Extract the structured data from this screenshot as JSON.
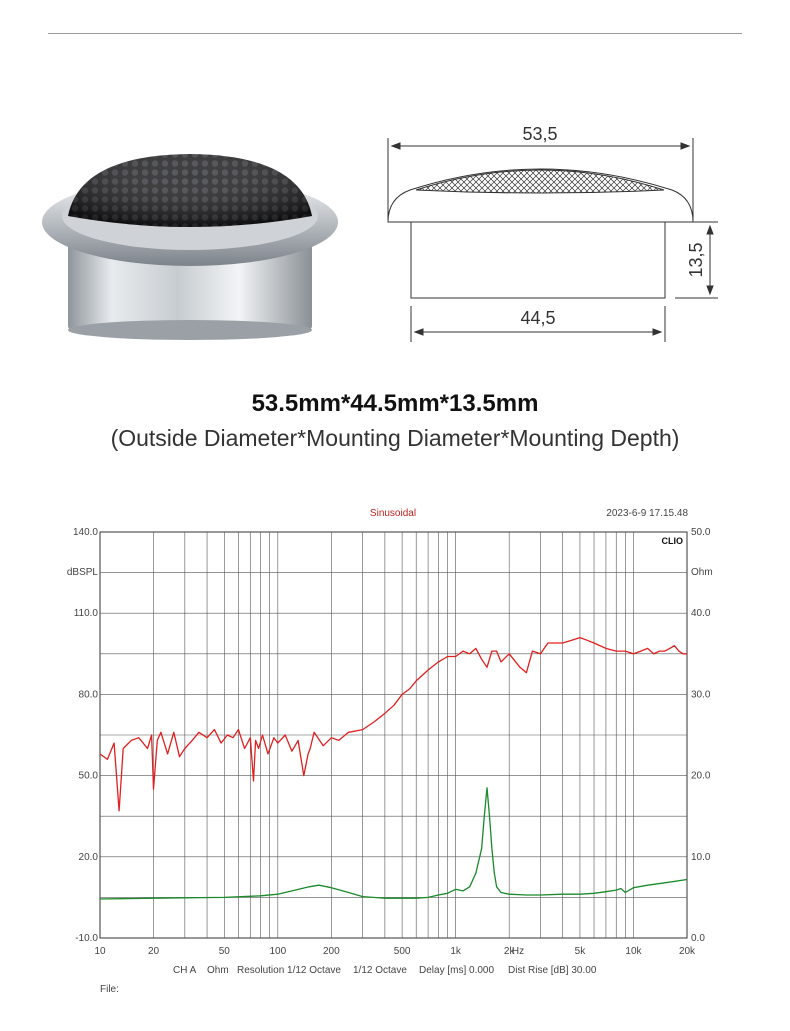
{
  "drawing": {
    "outside_diameter_label": "53,5",
    "mounting_depth_label": "13,5",
    "mounting_diameter_label": "44,5"
  },
  "dimensions": {
    "title": "53.5mm*44.5mm*13.5mm",
    "subtitle": "(Outside Diameter*Mounting Diameter*Mounting Depth)"
  },
  "chart_data": {
    "type": "line",
    "title": "Sinusoidal",
    "timestamp": "2023-6-9 17.15.48",
    "brand": "CLIO",
    "x_scale": "log",
    "xlim": [
      10,
      20000
    ],
    "x_ticks": [
      10,
      20,
      50,
      100,
      200,
      500,
      1000,
      2000,
      5000,
      10000,
      20000
    ],
    "x_tick_labels": [
      "10",
      "20",
      "50",
      "100",
      "200",
      "500",
      "1k",
      "2k",
      "5k",
      "10k",
      "20k"
    ],
    "x_unit": "Hz",
    "left_axis": {
      "unit": "dBSPL",
      "ylim": [
        -10,
        140
      ],
      "tick_labels": [
        "140.0",
        "110.0",
        "80.0",
        "50.0",
        "20.0",
        "-10.0"
      ]
    },
    "right_axis": {
      "unit": "Ohm",
      "ylim": [
        0,
        50
      ],
      "tick_labels": [
        "50.0",
        "40.0",
        "30.0",
        "20.0",
        "10.0",
        "0.0"
      ]
    },
    "grid": true,
    "series": [
      {
        "color": "#e0201f",
        "axis": "left",
        "x": [
          10,
          11,
          12,
          12.8,
          13.5,
          15,
          16.5,
          17.5,
          18.5,
          19.5,
          20,
          21,
          22,
          24,
          26,
          28,
          30,
          33,
          36,
          40,
          44,
          48,
          52,
          56,
          60,
          65,
          70,
          73,
          75,
          78,
          82,
          88,
          95,
          100,
          110,
          120,
          130,
          140,
          148,
          152,
          160,
          180,
          200,
          220,
          250,
          300,
          350,
          400,
          450,
          500,
          550,
          600,
          700,
          800,
          900,
          1000,
          1100,
          1200,
          1300,
          1400,
          1500,
          1600,
          1700,
          1800,
          2000,
          2300,
          2500,
          2700,
          3000,
          3300,
          3600,
          4000,
          4500,
          5000,
          5500,
          6000,
          7000,
          8000,
          9000,
          10000,
          11000,
          12000,
          13000,
          14000,
          15000,
          16000,
          17000,
          18000,
          19000,
          20000
        ],
        "y": [
          58,
          56,
          62,
          37,
          60,
          63,
          64,
          62,
          60,
          65,
          45,
          63,
          66,
          58,
          66,
          57,
          60,
          63,
          66,
          64,
          67,
          62,
          65,
          64,
          67,
          60,
          64,
          48,
          63,
          60,
          65,
          58,
          64,
          62,
          65,
          59,
          63,
          50,
          58,
          60,
          66,
          61,
          64,
          63,
          66,
          67,
          70,
          73,
          76,
          80,
          82,
          85,
          89,
          92,
          94,
          94,
          96,
          95,
          97,
          93,
          90,
          96,
          96,
          92,
          95,
          90,
          88,
          96,
          95,
          99,
          99,
          99,
          100,
          101,
          100,
          99,
          97,
          96,
          96,
          95,
          96,
          97,
          95,
          96,
          96,
          97,
          98,
          96,
          95,
          95
        ]
      },
      {
        "color": "#1a8a2a",
        "axis": "right",
        "x": [
          10,
          20,
          50,
          80,
          100,
          120,
          150,
          170,
          200,
          250,
          300,
          400,
          500,
          600,
          700,
          800,
          900,
          1000,
          1100,
          1200,
          1300,
          1400,
          1450,
          1500,
          1550,
          1600,
          1650,
          1700,
          1800,
          2000,
          2500,
          3000,
          4000,
          5000,
          6000,
          7000,
          8000,
          8500,
          9000,
          10000,
          12000,
          15000,
          20000
        ],
        "y": [
          4.8,
          4.9,
          5.0,
          5.2,
          5.4,
          5.8,
          6.3,
          6.5,
          6.2,
          5.6,
          5.1,
          4.9,
          4.9,
          4.9,
          5.0,
          5.3,
          5.5,
          6.0,
          5.8,
          6.3,
          8.0,
          11.0,
          15.0,
          18.5,
          15.0,
          11.0,
          8.0,
          6.3,
          5.6,
          5.4,
          5.3,
          5.3,
          5.4,
          5.4,
          5.5,
          5.7,
          5.9,
          6.1,
          5.6,
          6.2,
          6.5,
          6.8,
          7.2
        ]
      }
    ],
    "footer": {
      "channel": "CH A",
      "unit": "Ohm",
      "resolution": "Resolution 1/12 Octave",
      "smoothing": "1/12 Octave",
      "delay": "Delay [ms] 0.000",
      "dist_rise": "Dist Rise [dB] 30.00",
      "file_label": "File:"
    }
  }
}
